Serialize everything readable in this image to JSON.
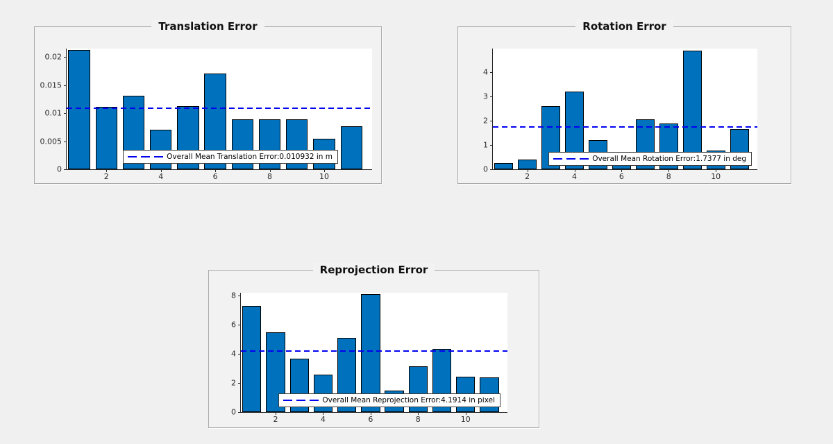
{
  "figure": {
    "background": "#f0f0f0",
    "panel_background": "#f2f2f2",
    "panel_border_color": "#aaaaaa"
  },
  "chart_data": [
    {
      "type": "bar",
      "title": "Translation Error",
      "xlabel": "",
      "ylabel": "",
      "grid": false,
      "x": [
        1,
        2,
        3,
        4,
        5,
        6,
        7,
        8,
        9,
        10,
        11
      ],
      "values": [
        0.0213,
        0.0111,
        0.0131,
        0.0071,
        0.0112,
        0.0171,
        0.0089,
        0.0089,
        0.0089,
        0.0054,
        0.0077
      ],
      "bar_width": 0.8,
      "bar_color": "#0072BD",
      "bar_edge_color": "#000000",
      "mean_line": 0.010932,
      "mean_line_color": "#0000f0",
      "mean_line_style": "dashed",
      "legend_label": "Overall Mean Translation Error:0.010932 in m",
      "legend_position": "south",
      "x_ticks": [
        2,
        4,
        6,
        8,
        10
      ],
      "y_ticks": [
        0,
        0.005,
        0.01,
        0.015,
        0.02
      ],
      "y_tick_labels": [
        "0",
        "0.005",
        "0.01",
        "0.015",
        "0.02"
      ],
      "xlim": [
        0.54,
        11.76
      ],
      "ylim": [
        0,
        0.0215
      ]
    },
    {
      "type": "bar",
      "title": "Rotation Error",
      "xlabel": "",
      "ylabel": "",
      "grid": false,
      "x": [
        1,
        2,
        3,
        4,
        5,
        6,
        7,
        8,
        9,
        10,
        11
      ],
      "values": [
        0.26,
        0.39,
        2.6,
        3.2,
        1.2,
        0.3,
        2.05,
        1.9,
        4.9,
        0.76,
        1.65
      ],
      "bar_width": 0.8,
      "bar_color": "#0072BD",
      "bar_edge_color": "#000000",
      "mean_line": 1.7377,
      "mean_line_color": "#0000f0",
      "mean_line_style": "dashed",
      "legend_label": "Overall Mean Rotation Error:1.7377 in deg",
      "legend_position": "south",
      "x_ticks": [
        2,
        4,
        6,
        8,
        10
      ],
      "y_ticks": [
        0,
        1,
        2,
        3,
        4
      ],
      "y_tick_labels": [
        "0",
        "1",
        "2",
        "3",
        "4"
      ],
      "xlim": [
        0.54,
        11.76
      ],
      "ylim": [
        0,
        4.97
      ]
    },
    {
      "type": "bar",
      "title": "Reprojection Error",
      "xlabel": "",
      "ylabel": "",
      "grid": false,
      "x": [
        1,
        2,
        3,
        4,
        5,
        6,
        7,
        8,
        9,
        10,
        11
      ],
      "values": [
        7.3,
        5.5,
        3.65,
        2.6,
        5.1,
        8.1,
        1.5,
        3.15,
        4.35,
        2.45,
        2.4
      ],
      "bar_width": 0.8,
      "bar_color": "#0072BD",
      "bar_edge_color": "#000000",
      "mean_line": 4.1914,
      "mean_line_color": "#0000f0",
      "mean_line_style": "dashed",
      "legend_label": "Overall Mean Reprojection Error:4.1914 in pixel",
      "legend_position": "south",
      "x_ticks": [
        2,
        4,
        6,
        8,
        10
      ],
      "y_ticks": [
        0,
        2,
        4,
        6,
        8
      ],
      "y_tick_labels": [
        "0",
        "2",
        "4",
        "6",
        "8"
      ],
      "xlim": [
        0.54,
        11.76
      ],
      "ylim": [
        0,
        8.2
      ]
    }
  ]
}
